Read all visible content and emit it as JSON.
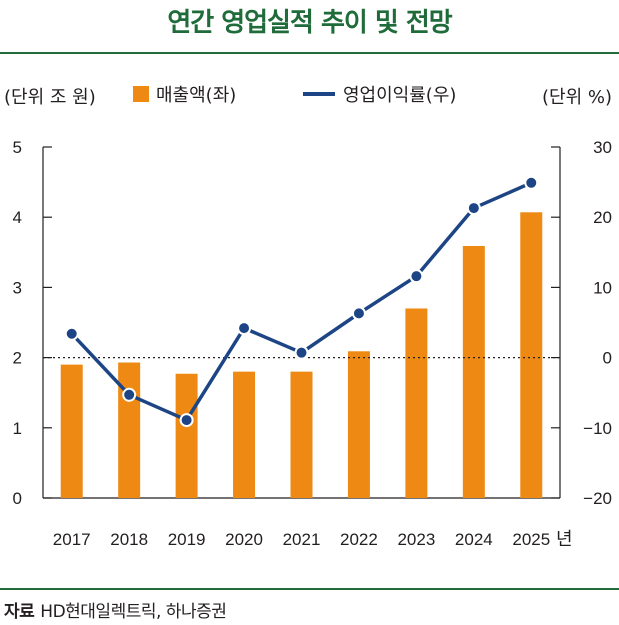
{
  "title": "연간 영업실적 추이 및 전망",
  "source": {
    "label": "자료",
    "text": "HD현대일렉트릭, 하나증권"
  },
  "colors": {
    "bar": "#ee8a14",
    "line": "#1d4585",
    "title": "#1f6b3a"
  },
  "chart_data": {
    "type": "bar",
    "categories": [
      "2017",
      "2018",
      "2019",
      "2020",
      "2021",
      "2022",
      "2023",
      "2024",
      "2025"
    ],
    "x_suffix": "년",
    "series": [
      {
        "name": "매출액(좌)",
        "type": "bar",
        "axis": "left",
        "values": [
          1.9,
          1.93,
          1.77,
          1.8,
          1.8,
          2.09,
          2.7,
          3.59,
          4.07
        ]
      },
      {
        "name": "영업이익률(우)",
        "type": "line",
        "axis": "right",
        "values": [
          3.4,
          -5.3,
          -8.9,
          4.2,
          0.7,
          6.3,
          11.6,
          21.3,
          24.9
        ]
      }
    ],
    "y_left": {
      "label": "(단위 조 원)",
      "lim": [
        0,
        5
      ],
      "ticks": [
        "0",
        "1",
        "2",
        "3",
        "4",
        "5"
      ]
    },
    "y_right": {
      "label": "(단위 %)",
      "lim": [
        -20,
        30
      ],
      "ticks": [
        "−20",
        "−10",
        "0",
        "10",
        "20",
        "30"
      ]
    },
    "reference_line": {
      "axis": "left",
      "value": 2,
      "style": "dotted"
    }
  }
}
